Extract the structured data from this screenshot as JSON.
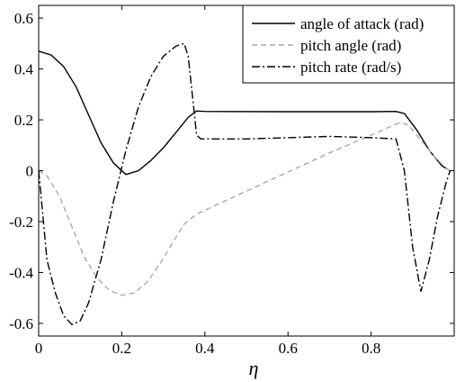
{
  "chart_data": {
    "type": "line",
    "title": "",
    "xlabel": "η",
    "ylabel": "",
    "xlim": [
      0,
      1
    ],
    "ylim": [
      -0.65,
      0.65
    ],
    "grid": false,
    "legend_position": "top-right",
    "x_ticks": [
      "0",
      "0.2",
      "0.4",
      "0.6",
      "0.8"
    ],
    "y_ticks": [
      "0.6",
      "0.4",
      "0.2",
      "0",
      "-0.2",
      "-0.4",
      "-0.6"
    ],
    "x_tick_values": [
      0,
      0.2,
      0.4,
      0.6,
      0.8
    ],
    "y_tick_values": [
      0.6,
      0.4,
      0.2,
      0,
      -0.2,
      -0.4,
      -0.6
    ],
    "series": [
      {
        "name": "angle of attack (rad)",
        "color": "#000000",
        "dash": "solid",
        "points": [
          [
            0,
            0.47
          ],
          [
            0.03,
            0.455
          ],
          [
            0.06,
            0.41
          ],
          [
            0.09,
            0.33
          ],
          [
            0.12,
            0.22
          ],
          [
            0.15,
            0.11
          ],
          [
            0.18,
            0.03
          ],
          [
            0.21,
            -0.015
          ],
          [
            0.24,
            0.0
          ],
          [
            0.27,
            0.04
          ],
          [
            0.3,
            0.09
          ],
          [
            0.33,
            0.15
          ],
          [
            0.36,
            0.21
          ],
          [
            0.38,
            0.235
          ],
          [
            0.4,
            0.233
          ],
          [
            0.6,
            0.232
          ],
          [
            0.8,
            0.232
          ],
          [
            0.86,
            0.233
          ],
          [
            0.88,
            0.225
          ],
          [
            0.91,
            0.16
          ],
          [
            0.94,
            0.08
          ],
          [
            0.97,
            0.02
          ],
          [
            0.99,
            0.0
          ]
        ]
      },
      {
        "name": "pitch angle (rad)",
        "color": "#aaaaaa",
        "dash": "dashed",
        "points": [
          [
            0,
            0.0
          ],
          [
            0.02,
            -0.02
          ],
          [
            0.05,
            -0.1
          ],
          [
            0.08,
            -0.22
          ],
          [
            0.11,
            -0.34
          ],
          [
            0.14,
            -0.42
          ],
          [
            0.17,
            -0.47
          ],
          [
            0.2,
            -0.49
          ],
          [
            0.23,
            -0.48
          ],
          [
            0.26,
            -0.44
          ],
          [
            0.29,
            -0.37
          ],
          [
            0.32,
            -0.29
          ],
          [
            0.35,
            -0.21
          ],
          [
            0.38,
            -0.17
          ],
          [
            0.5,
            -0.08
          ],
          [
            0.6,
            -0.005
          ],
          [
            0.7,
            0.07
          ],
          [
            0.8,
            0.14
          ],
          [
            0.87,
            0.19
          ],
          [
            0.89,
            0.18
          ],
          [
            0.92,
            0.12
          ],
          [
            0.95,
            0.06
          ],
          [
            0.98,
            0.01
          ],
          [
            0.99,
            0.0
          ]
        ]
      },
      {
        "name": "pitch rate (rad/s)",
        "color": "#000000",
        "dash": "dashdot",
        "points": [
          [
            0,
            0.0
          ],
          [
            0.02,
            -0.35
          ],
          [
            0.04,
            -0.48
          ],
          [
            0.06,
            -0.57
          ],
          [
            0.08,
            -0.605
          ],
          [
            0.1,
            -0.59
          ],
          [
            0.12,
            -0.52
          ],
          [
            0.15,
            -0.35
          ],
          [
            0.18,
            -0.12
          ],
          [
            0.21,
            0.08
          ],
          [
            0.24,
            0.25
          ],
          [
            0.27,
            0.37
          ],
          [
            0.3,
            0.45
          ],
          [
            0.33,
            0.49
          ],
          [
            0.35,
            0.5
          ],
          [
            0.36,
            0.45
          ],
          [
            0.38,
            0.14
          ],
          [
            0.39,
            0.125
          ],
          [
            0.5,
            0.125
          ],
          [
            0.6,
            0.13
          ],
          [
            0.7,
            0.135
          ],
          [
            0.8,
            0.13
          ],
          [
            0.86,
            0.125
          ],
          [
            0.88,
            0.0
          ],
          [
            0.9,
            -0.3
          ],
          [
            0.92,
            -0.475
          ],
          [
            0.94,
            -0.35
          ],
          [
            0.96,
            -0.18
          ],
          [
            0.98,
            -0.05
          ],
          [
            0.99,
            0.0
          ]
        ]
      }
    ]
  }
}
